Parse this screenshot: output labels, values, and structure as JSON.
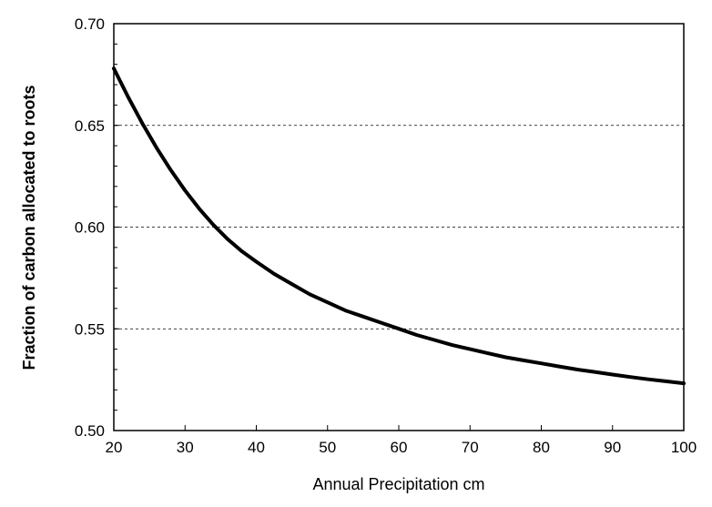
{
  "chart_data": {
    "type": "line",
    "title": "",
    "xlabel": "Annual Precipitation  cm",
    "ylabel": "Fraction of carbon allocated to roots",
    "xlim": [
      20,
      100
    ],
    "ylim": [
      0.5,
      0.7
    ],
    "xticks": [
      "20",
      "30",
      "40",
      "50",
      "60",
      "70",
      "80",
      "90",
      "100"
    ],
    "yticks": [
      "0.50",
      "0.55",
      "0.60",
      "0.65",
      "0.70"
    ],
    "grid": "horizontal dashed",
    "legend": "none",
    "series": [
      {
        "color": "#000000",
        "x": [
          20,
          22,
          24,
          26,
          28,
          30,
          32,
          34,
          36,
          38,
          40,
          42.5,
          45,
          47.5,
          50,
          52.5,
          55,
          57.5,
          60,
          62.5,
          65,
          67.5,
          70,
          72.5,
          75,
          77.5,
          80,
          82.5,
          85,
          87.5,
          90,
          92.5,
          95,
          97.5,
          100
        ],
        "y": [
          0.678,
          0.664,
          0.651,
          0.639,
          0.628,
          0.618,
          0.609,
          0.601,
          0.594,
          0.588,
          0.583,
          0.577,
          0.572,
          0.567,
          0.563,
          0.559,
          0.556,
          0.553,
          0.55,
          0.547,
          0.5445,
          0.542,
          0.54,
          0.538,
          0.536,
          0.5345,
          0.533,
          0.5315,
          0.53,
          0.5288,
          0.5275,
          0.5263,
          0.5252,
          0.5242,
          0.5232
        ]
      }
    ]
  }
}
